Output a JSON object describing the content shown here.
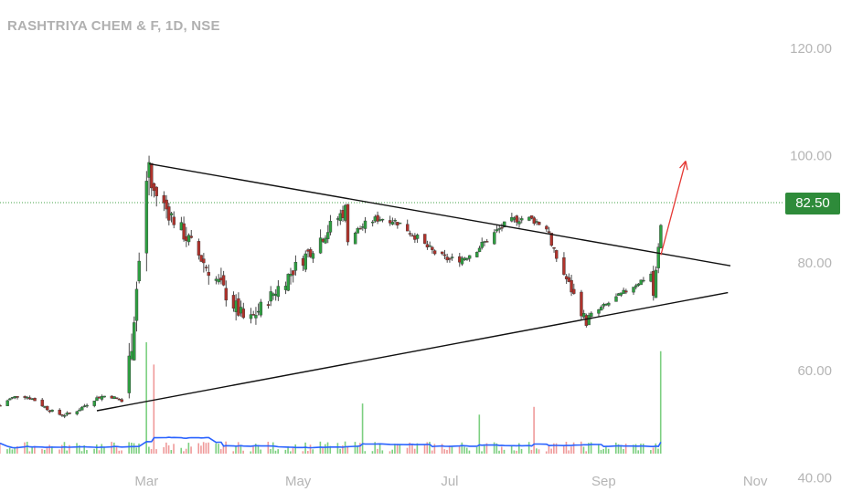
{
  "title": "RASHTRIYA CHEM & F, 1D, NSE",
  "colors": {
    "up": "#26a69a",
    "up_fill": "#2e9f41",
    "down": "#b0322b",
    "wick": "#4a4a4a",
    "volume_up": "#7ccf80",
    "volume_down": "#ef9a9a",
    "volume_ma": "#2962ff",
    "price_line": "#43a047",
    "price_label_bg": "#2e8b3a",
    "trendline": "#111111",
    "arrow": "#e53935",
    "axis_text": "#b5b5b5",
    "title_text": "#b0b0b0"
  },
  "last_price_label": "82.50",
  "chart_data": {
    "type": "candlestick",
    "title": "RASHTRIYA CHEM & F, 1D, NSE",
    "y_ticks": [
      "120.00",
      "100.00",
      "80.00",
      "60.00",
      "40.00"
    ],
    "y_tick_values": [
      120,
      100,
      80,
      60,
      40
    ],
    "ylim": [
      35.5,
      129
    ],
    "x_ticks": [
      "Mar",
      "May",
      "Jul",
      "Sep",
      "Nov"
    ],
    "x_tick_dates": [
      "2021-03-01",
      "2021-05-01",
      "2021-07-01",
      "2021-09-01",
      "2021-11-01"
    ],
    "xlim": [
      "2021-01-01",
      "2021-11-30"
    ],
    "last_price": 82.5,
    "phases": [
      {
        "start": "2021-01-01",
        "end": "2021-02-19",
        "low": 51,
        "high": 56,
        "trend": "flat"
      },
      {
        "start": "2021-02-20",
        "end": "2021-03-02",
        "low": 52,
        "high": 99,
        "trend": "up"
      },
      {
        "start": "2021-03-03",
        "end": "2021-04-10",
        "low": 69,
        "high": 94,
        "trend": "down"
      },
      {
        "start": "2021-04-11",
        "end": "2021-05-20",
        "low": 69,
        "high": 90,
        "trend": "up"
      },
      {
        "start": "2021-05-21",
        "end": "2021-08-10",
        "low": 79,
        "high": 90,
        "trend": "flat"
      },
      {
        "start": "2021-08-11",
        "end": "2021-08-25",
        "low": 69,
        "high": 83,
        "trend": "down"
      },
      {
        "start": "2021-08-26",
        "end": "2021-09-20",
        "low": 70,
        "high": 78,
        "trend": "up"
      },
      {
        "start": "2021-09-21",
        "end": "2021-09-24",
        "low": 74,
        "high": 87,
        "trend": "up"
      }
    ],
    "volume_spikes": [
      {
        "date": "2021-02-27",
        "relative": 0.55
      },
      {
        "date": "2021-03-01",
        "relative": 1.0
      },
      {
        "date": "2021-03-04",
        "relative": 0.8
      },
      {
        "date": "2021-03-06",
        "relative": 0.65
      },
      {
        "date": "2021-05-27",
        "relative": 0.45
      },
      {
        "date": "2021-07-13",
        "relative": 0.35
      },
      {
        "date": "2021-08-04",
        "relative": 0.42
      },
      {
        "date": "2021-09-24",
        "relative": 0.92
      }
    ],
    "trendlines": [
      {
        "name": "upper",
        "from": {
          "date": "2021-03-02",
          "price": 98.5
        },
        "to": {
          "date": "2021-10-22",
          "price": 79.5
        }
      },
      {
        "name": "lower",
        "from": {
          "date": "2021-02-09",
          "price": 52.5
        },
        "to": {
          "date": "2021-10-21",
          "price": 74.5
        }
      }
    ],
    "arrow": {
      "from": {
        "date": "2021-09-24",
        "price": 81.5
      },
      "to": {
        "date": "2021-10-04",
        "price": 99
      }
    },
    "volume_ma": true,
    "grid": false
  }
}
